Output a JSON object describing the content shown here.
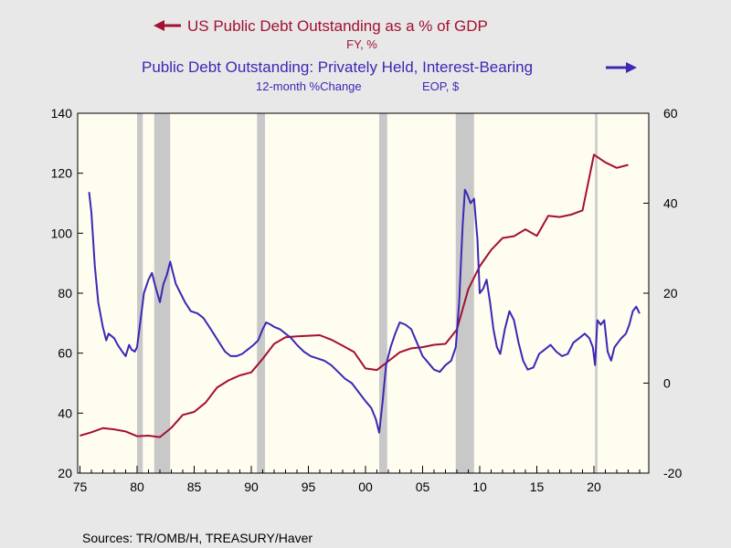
{
  "chart_data": {
    "type": "line",
    "legend": {
      "series1_title": "US Public Debt Outstanding as a % of GDP",
      "series1_subtitle": "FY, %",
      "series2_title": "Public Debt Outstanding: Privately Held, Interest-Bearing",
      "series2_subtitle_a": "12-month %Change",
      "series2_subtitle_b": "EOP, $"
    },
    "source": "Sources:  TR/OMB/H, TREASURY/Haver",
    "x_range": [
      1974.8,
      2024.8
    ],
    "x_ticks": [
      {
        "value": 1975,
        "label": "75"
      },
      {
        "value": 1980,
        "label": "80"
      },
      {
        "value": 1985,
        "label": "85"
      },
      {
        "value": 1990,
        "label": "90"
      },
      {
        "value": 1995,
        "label": "95"
      },
      {
        "value": 2000,
        "label": "00"
      },
      {
        "value": 2005,
        "label": "05"
      },
      {
        "value": 2010,
        "label": "10"
      },
      {
        "value": 2015,
        "label": "15"
      },
      {
        "value": 2020,
        "label": "20"
      }
    ],
    "y_left": {
      "range": [
        20,
        140
      ],
      "ticks": [
        "20",
        "40",
        "60",
        "80",
        "100",
        "120",
        "140"
      ]
    },
    "y_right": {
      "range": [
        -20,
        60
      ],
      "ticks": [
        "-20",
        "0",
        "20",
        "40",
        "60"
      ]
    },
    "recessions": [
      [
        1980.0,
        1980.5
      ],
      [
        1981.5,
        1982.9
      ],
      [
        1990.5,
        1991.2
      ],
      [
        2001.2,
        2001.9
      ],
      [
        2007.9,
        2009.5
      ],
      [
        2020.1,
        2020.3
      ]
    ],
    "colors": {
      "series1": "#a31030",
      "series2": "#3c28b4",
      "recession": "#c8c8c8",
      "plot_bg": "#fffcf0"
    },
    "series": [
      {
        "name": "US Public Debt Outstanding as a % of GDP",
        "axis": "left",
        "x": [
          1975,
          1976,
          1977,
          1978,
          1979,
          1980,
          1981,
          1982,
          1983,
          1984,
          1985,
          1986,
          1987,
          1988,
          1989,
          1990,
          1991,
          1992,
          1993,
          1994,
          1995,
          1996,
          1997,
          1998,
          1999,
          2000,
          2001,
          2002,
          2003,
          2004,
          2005,
          2006,
          2007,
          2008,
          2009,
          2010,
          2011,
          2012,
          2013,
          2014,
          2015,
          2016,
          2017,
          2018,
          2019,
          2020,
          2021,
          2022,
          2023
        ],
        "values": [
          32.5,
          33.6,
          35.0,
          34.6,
          33.9,
          32.3,
          32.5,
          32.0,
          35.1,
          39.4,
          40.4,
          43.5,
          48.5,
          50.9,
          52.6,
          53.6,
          58.1,
          63.1,
          65.3,
          65.6,
          65.8,
          66.0,
          64.5,
          62.5,
          60.4,
          54.9,
          54.4,
          57.3,
          60.3,
          61.6,
          62.0,
          62.8,
          63.1,
          67.9,
          81.3,
          89.0,
          94.4,
          98.4,
          99.0,
          101.3,
          99.1,
          105.8,
          105.4,
          106.2,
          107.6,
          126.2,
          123.6,
          121.8,
          122.8
        ]
      },
      {
        "name": "Public Debt Outstanding: Privately Held, Interest-Bearing",
        "axis": "right",
        "x": [
          1975.8,
          1976.0,
          1976.3,
          1976.6,
          1977.0,
          1977.3,
          1977.5,
          1978.0,
          1978.3,
          1978.7,
          1979.0,
          1979.3,
          1979.5,
          1979.8,
          1980.0,
          1980.3,
          1980.6,
          1981.0,
          1981.3,
          1981.6,
          1982.0,
          1982.3,
          1982.6,
          1982.9,
          1983.1,
          1983.4,
          1983.8,
          1984.2,
          1984.7,
          1985.3,
          1985.8,
          1986.2,
          1986.7,
          1987.2,
          1987.7,
          1988.2,
          1988.7,
          1989.2,
          1989.7,
          1990.2,
          1990.6,
          1991.0,
          1991.3,
          1991.7,
          1992.0,
          1992.5,
          1993.0,
          1993.5,
          1994.0,
          1994.6,
          1995.2,
          1995.8,
          1996.4,
          1997.0,
          1997.6,
          1998.2,
          1998.8,
          1999.4,
          2000.0,
          2000.5,
          2000.9,
          2001.2,
          2001.5,
          2001.8,
          2002.2,
          2002.6,
          2003.0,
          2003.5,
          2004.0,
          2004.5,
          2005.0,
          2005.5,
          2006.0,
          2006.5,
          2007.0,
          2007.5,
          2007.9,
          2008.2,
          2008.5,
          2008.7,
          2008.9,
          2009.2,
          2009.5,
          2009.8,
          2010.0,
          2010.3,
          2010.6,
          2010.9,
          2011.2,
          2011.5,
          2011.8,
          2012.2,
          2012.6,
          2013.0,
          2013.4,
          2013.8,
          2014.2,
          2014.7,
          2015.2,
          2015.7,
          2016.2,
          2016.7,
          2017.2,
          2017.7,
          2018.2,
          2018.7,
          2019.2,
          2019.6,
          2019.9,
          2020.1,
          2020.3,
          2020.6,
          2020.9,
          2021.2,
          2021.5,
          2021.8,
          2022.1,
          2022.4,
          2022.8,
          2023.1,
          2023.4,
          2023.7,
          2024.0
        ],
        "values": [
          42.5,
          38.0,
          26.0,
          18.0,
          12.5,
          9.5,
          11.0,
          10.0,
          8.5,
          7.0,
          6.0,
          8.5,
          7.5,
          7.0,
          8.0,
          14.0,
          20.0,
          23.0,
          24.5,
          21.5,
          18.0,
          22.0,
          24.0,
          27.0,
          25.0,
          22.0,
          20.0,
          18.0,
          16.0,
          15.5,
          14.5,
          13.0,
          11.0,
          9.0,
          7.0,
          6.0,
          6.0,
          6.5,
          7.5,
          8.5,
          9.5,
          12.0,
          13.5,
          13.0,
          12.5,
          12.0,
          11.0,
          10.0,
          8.5,
          7.0,
          6.0,
          5.5,
          5.0,
          4.0,
          2.5,
          1.0,
          0.0,
          -2.0,
          -4.0,
          -5.5,
          -8.0,
          -11.0,
          -4.0,
          4.0,
          8.0,
          11.0,
          13.5,
          13.0,
          12.0,
          9.0,
          6.0,
          4.5,
          3.0,
          2.5,
          4.0,
          5.0,
          8.0,
          18.0,
          35.0,
          43.0,
          42.0,
          40.0,
          41.0,
          32.0,
          20.0,
          21.0,
          23.0,
          18.0,
          12.0,
          8.0,
          6.5,
          12.0,
          16.0,
          14.0,
          9.0,
          5.0,
          3.0,
          3.5,
          6.5,
          7.5,
          8.5,
          7.0,
          6.0,
          6.5,
          9.0,
          10.0,
          11.0,
          10.0,
          8.0,
          4.0,
          14.0,
          13.0,
          14.0,
          7.0,
          5.0,
          8.0,
          9.0,
          10.0,
          11.0,
          13.0,
          16.0,
          17.0,
          15.5
        ]
      }
    ]
  }
}
